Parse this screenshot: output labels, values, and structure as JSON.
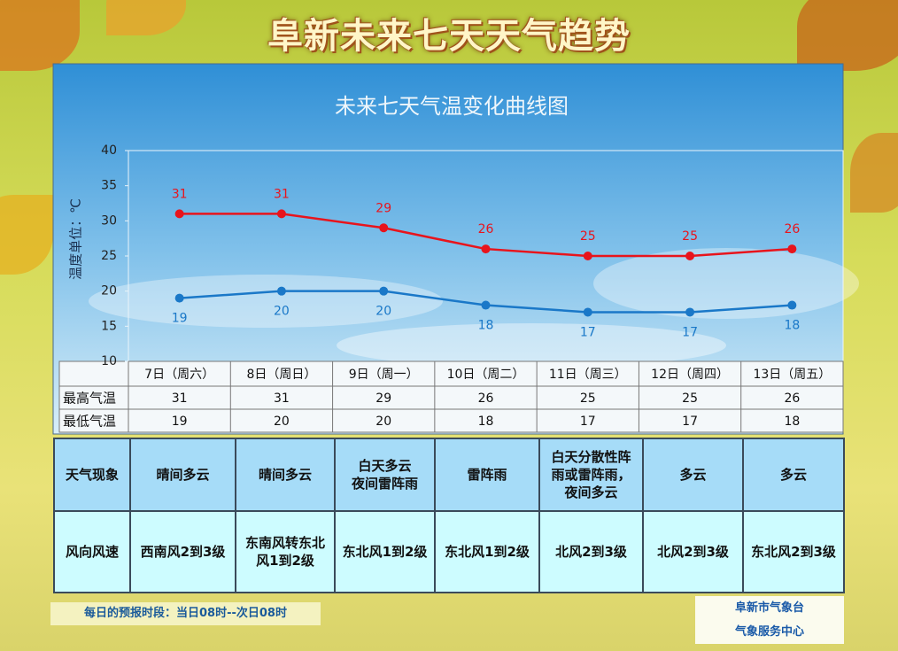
{
  "header": {
    "title": "阜新未来七天天气趋势"
  },
  "chart_data": {
    "type": "line",
    "title": "未来七天气温变化曲线图",
    "y_label": "温度单位：℃",
    "categories": [
      "7日（周六）",
      "8日（周日）",
      "9日（周一）",
      "10日（周二）",
      "11日（周三）",
      "12日（周四）",
      "13日（周五）"
    ],
    "series": [
      {
        "name": "最高气温",
        "color": "#e8141c",
        "values": [
          31,
          31,
          29,
          26,
          25,
          25,
          26
        ]
      },
      {
        "name": "最低气温",
        "color": "#1a78c8",
        "values": [
          19,
          20,
          20,
          18,
          17,
          17,
          18
        ]
      }
    ],
    "ylim": [
      10,
      40
    ],
    "yticks": [
      10,
      15,
      20,
      25,
      30,
      35,
      40
    ],
    "grid": false
  },
  "weather_table": {
    "rows": [
      {
        "label": "天气现象",
        "cells": [
          "晴间多云",
          "晴间多云",
          "白天多云\n夜间雷阵雨",
          "雷阵雨",
          "白天分散性阵雨或雷阵雨，夜间多云",
          "多云",
          "多云"
        ]
      },
      {
        "label": "风向风速",
        "cells": [
          "西南风2到3级",
          "东南风转东北风1到2级",
          "东北风1到2级",
          "东北风1到2级",
          "北风2到3级",
          "北风2到3级",
          "东北风2到3级"
        ]
      }
    ]
  },
  "footer": {
    "note": "每日的预报时段：当日08时--次日08时",
    "org": [
      "阜新市气象台",
      "气象服务中心"
    ]
  }
}
